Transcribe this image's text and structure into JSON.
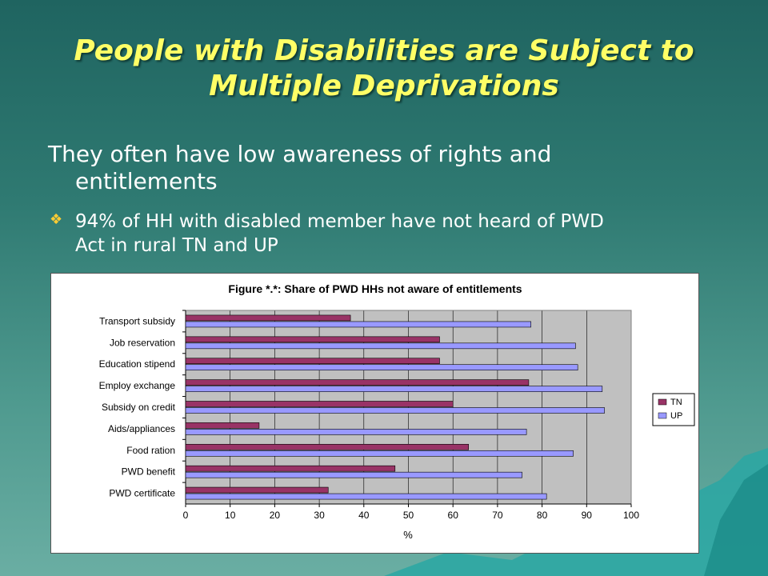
{
  "slide": {
    "title_line1": "People with Disabilities are Subject to",
    "title_line2": "Multiple Deprivations",
    "body_line1": "They often have low awareness of rights and",
    "body_line2": "entitlements",
    "bullet_line1": "94% of HH with disabled member have not heard of PWD",
    "bullet_line2": "Act in rural TN and UP"
  },
  "colors": {
    "title": "#ffff66",
    "tn": "#993366",
    "up": "#9999ff",
    "plot_bg": "#c0c0c0"
  },
  "chart_data": {
    "type": "bar",
    "orientation": "horizontal",
    "title": "Figure *.*: Share of PWD HHs not aware of entitlements",
    "xlabel": "%",
    "ylabel": "",
    "xlim": [
      0,
      100
    ],
    "xticks": [
      "0",
      "10",
      "20",
      "30",
      "40",
      "50",
      "60",
      "70",
      "80",
      "90",
      "100"
    ],
    "categories": [
      "Transport subsidy",
      "Job reservation",
      "Education stipend",
      "Employ exchange",
      "Subsidy on credit",
      "Aids/appliances",
      "Food ration",
      "PWD benefit",
      "PWD certificate"
    ],
    "series": [
      {
        "name": "TN",
        "values": [
          37,
          57,
          57,
          77,
          60,
          16.5,
          63.5,
          47,
          32
        ]
      },
      {
        "name": "UP",
        "values": [
          77.5,
          87.5,
          88,
          93.5,
          94,
          76.5,
          87,
          75.5,
          81
        ]
      }
    ],
    "grid": true,
    "legend": "right"
  }
}
